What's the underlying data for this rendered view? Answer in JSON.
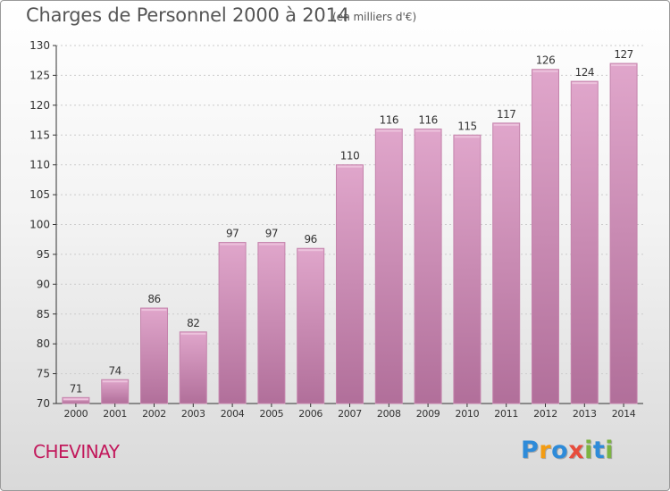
{
  "title": "Charges de Personnel 2000 à 2014",
  "subtitle": "(en milliers d'€)",
  "commune": "CHEVINAY",
  "logo": {
    "text": "Proxiti",
    "letters": [
      {
        "ch": "P",
        "color": "#2e8bd9"
      },
      {
        "ch": "r",
        "color": "#f39c12"
      },
      {
        "ch": "o",
        "color": "#2e8bd9"
      },
      {
        "ch": "x",
        "color": "#e74c3c"
      },
      {
        "ch": "i",
        "color": "#7cb342"
      },
      {
        "ch": "t",
        "color": "#2e8bd9"
      },
      {
        "ch": "i",
        "color": "#7cb342"
      }
    ]
  },
  "colors": {
    "bar_top": "#e0a6cb",
    "bar_bottom": "#b16f9a",
    "bar_edge": "#c585ad",
    "axis": "#333333",
    "grid": "#cccccc",
    "commune": "#c2185b"
  },
  "chart_data": {
    "type": "bar",
    "categories": [
      "2000",
      "2001",
      "2002",
      "2003",
      "2004",
      "2005",
      "2006",
      "2007",
      "2008",
      "2009",
      "2010",
      "2011",
      "2012",
      "2013",
      "2014"
    ],
    "values": [
      71,
      74,
      86,
      82,
      97,
      97,
      96,
      110,
      116,
      116,
      115,
      117,
      126,
      124,
      127
    ],
    "title": "Charges de Personnel 2000 à 2014",
    "xlabel": "",
    "ylabel": "",
    "ylim": [
      70,
      130
    ],
    "yticks": [
      70,
      75,
      80,
      85,
      90,
      95,
      100,
      105,
      110,
      115,
      120,
      125,
      130
    ],
    "grid": true,
    "legend": "none"
  }
}
